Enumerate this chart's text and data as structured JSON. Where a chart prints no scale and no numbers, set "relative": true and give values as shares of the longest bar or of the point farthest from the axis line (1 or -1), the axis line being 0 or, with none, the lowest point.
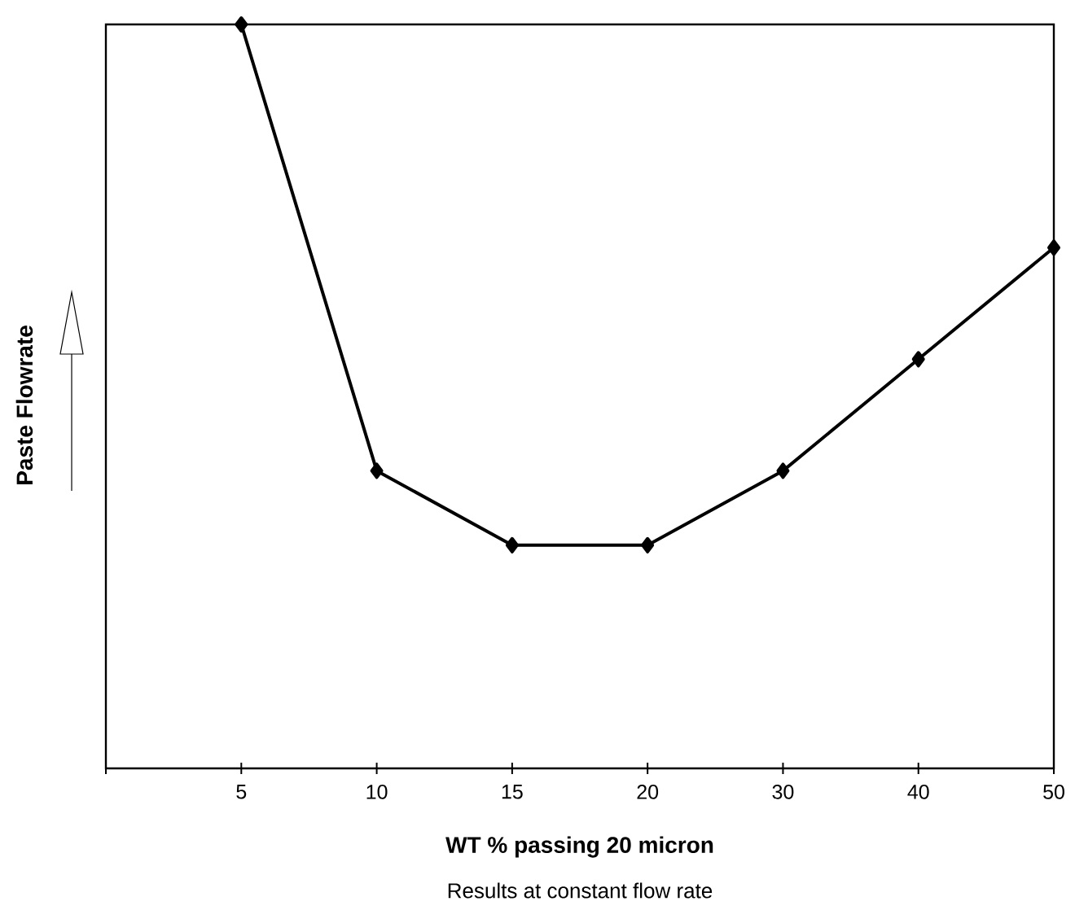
{
  "chart_data": {
    "type": "line",
    "relative": true,
    "xlabel": "WT % passing 20 micron",
    "ylabel": "Paste Flowrate",
    "annotations": [
      "Results at constant flow rate"
    ],
    "categories": [
      null,
      "5",
      "10",
      "15",
      "20",
      "30",
      "40",
      "50"
    ],
    "series": [
      {
        "color": "#000000",
        "values": [
          null,
          1.0,
          0.4,
          0.3,
          0.3,
          0.4,
          0.55,
          0.7
        ]
      }
    ],
    "marker": "diamond",
    "line_style": "solid"
  }
}
